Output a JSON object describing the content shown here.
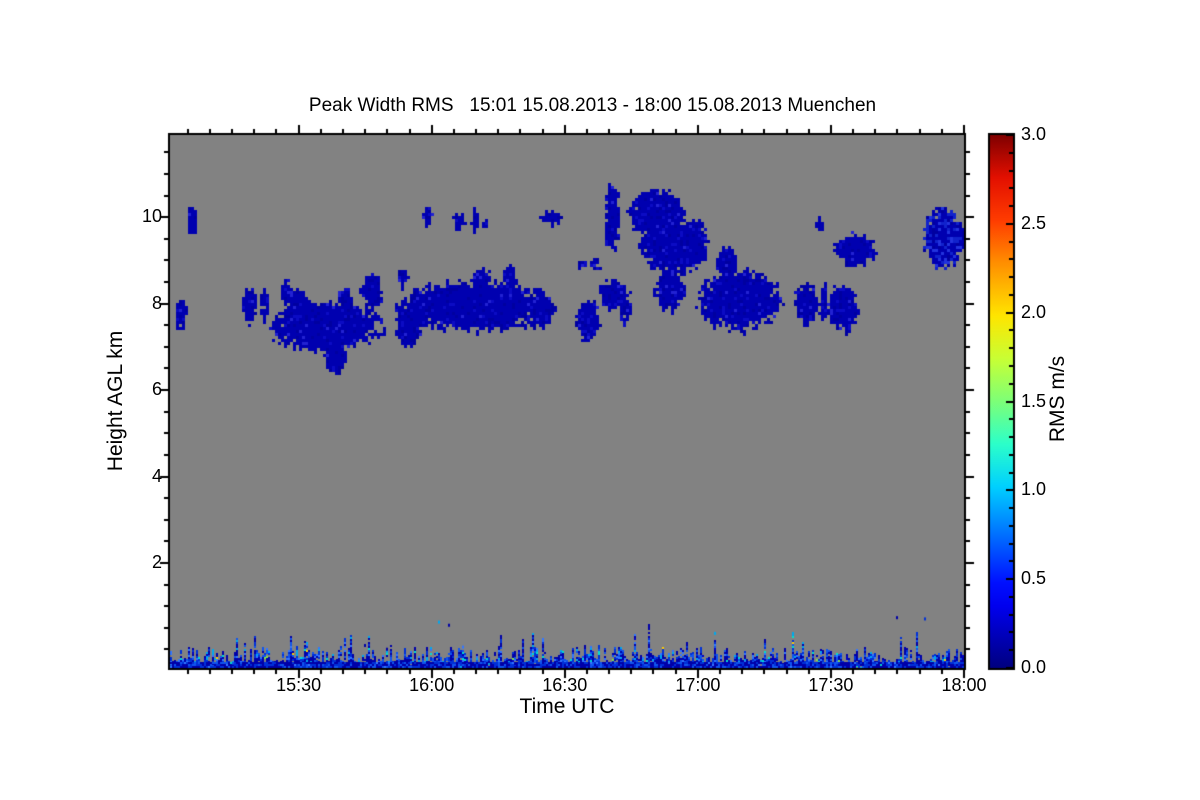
{
  "chart_data": {
    "type": "heatmap",
    "title": "Peak Width RMS   15:01 15.08.2013 - 18:00 15.08.2013 Muenchen",
    "xlabel": "Time UTC",
    "ylabel": "Height AGL km",
    "x_start_utc": "15:01",
    "x_end_utc": "18:00",
    "x_span_minutes": 179,
    "x_ticks": [
      {
        "t": 30,
        "label": "15:30"
      },
      {
        "t": 60,
        "label": "16:00"
      },
      {
        "t": 90,
        "label": "16:30"
      },
      {
        "t": 120,
        "label": "17:00"
      },
      {
        "t": 150,
        "label": "17:30"
      },
      {
        "t": 180,
        "label": "18:00"
      }
    ],
    "x_minor_tick_every_min": 5,
    "y_min_km": -0.43,
    "y_max_km": 11.9,
    "y_ticks": [
      {
        "h": 2,
        "label": "2"
      },
      {
        "h": 4,
        "label": "4"
      },
      {
        "h": 6,
        "label": "6"
      },
      {
        "h": 8,
        "label": "8"
      },
      {
        "h": 10,
        "label": "10"
      }
    ],
    "y_minor_tick_every_km": 0.5,
    "grid": false,
    "colors": {
      "plot_background_no_data": "#828282",
      "cloud_base": "#0000b0",
      "frame_and_text": "#000000",
      "page_background": "#ffffff"
    },
    "colorbar": {
      "label": "RMS m/s",
      "min": 0.0,
      "max": 3.0,
      "ticks": [
        {
          "v": 0.0,
          "label": "0.0"
        },
        {
          "v": 0.5,
          "label": "0.5"
        },
        {
          "v": 1.0,
          "label": "1.0"
        },
        {
          "v": 1.5,
          "label": "1.5"
        },
        {
          "v": 2.0,
          "label": "2.0"
        },
        {
          "v": 2.5,
          "label": "2.5"
        },
        {
          "v": 3.0,
          "label": "3.0"
        }
      ],
      "minor_tick_every": 0.1,
      "colormap": "jet",
      "colormap_stops": [
        [
          0.0,
          "#00007f"
        ],
        [
          0.115,
          "#0000ee"
        ],
        [
          0.16,
          "#0010ff"
        ],
        [
          0.34,
          "#00d0ff"
        ],
        [
          0.42,
          "#2cffca"
        ],
        [
          0.5,
          "#7dff78"
        ],
        [
          0.58,
          "#c8ff35"
        ],
        [
          0.66,
          "#ffe600"
        ],
        [
          0.76,
          "#ff8f00"
        ],
        [
          0.84,
          "#ff3c00"
        ],
        [
          0.92,
          "#e31000"
        ],
        [
          1.0,
          "#800000"
        ]
      ]
    },
    "cloud_regions_note": "low RMS (~0.1-0.3 m/s) cloud echoes; t = minutes after 15:00 UTC, h = km AGL, rt/rh = half extents",
    "clouds": [
      {
        "t": 3.7,
        "h": 7.76,
        "rt": 1.4,
        "rh": 0.36
      },
      {
        "t": 6.0,
        "h": 9.9,
        "rt": 1.4,
        "rh": 0.4
      },
      {
        "t": 19.0,
        "h": 7.95,
        "rt": 1.8,
        "rh": 0.45
      },
      {
        "t": 22.4,
        "h": 8.0,
        "rt": 1.0,
        "rh": 0.4,
        "d": 0.85
      },
      {
        "t": 27.3,
        "h": 8.25,
        "rt": 1.4,
        "rh": 0.3
      },
      {
        "t": 36.0,
        "h": 7.45,
        "rt": 12.8,
        "rh": 0.58
      },
      {
        "t": 38.2,
        "h": 6.85,
        "rt": 2.6,
        "rh": 0.5
      },
      {
        "t": 46.5,
        "h": 8.3,
        "rt": 2.6,
        "rh": 0.42
      },
      {
        "t": 40.5,
        "h": 8.1,
        "rt": 1.8,
        "rh": 0.28
      },
      {
        "t": 30.0,
        "h": 7.9,
        "rt": 3.0,
        "rh": 0.45
      },
      {
        "t": 53.5,
        "h": 8.6,
        "rt": 1.3,
        "rh": 0.22,
        "d": 0.9
      },
      {
        "t": 55.0,
        "h": 7.5,
        "rt": 3.0,
        "rh": 0.55
      },
      {
        "t": 69.0,
        "h": 7.95,
        "rt": 17.0,
        "rh": 0.6
      },
      {
        "t": 71.3,
        "h": 8.55,
        "rt": 2.2,
        "rh": 0.3
      },
      {
        "t": 77.5,
        "h": 8.6,
        "rt": 1.6,
        "rh": 0.3
      },
      {
        "t": 84.5,
        "h": 7.9,
        "rt": 3.2,
        "rh": 0.45
      },
      {
        "t": 95.2,
        "h": 7.6,
        "rt": 2.8,
        "rh": 0.5
      },
      {
        "t": 101.0,
        "h": 8.2,
        "rt": 3.6,
        "rh": 0.38
      },
      {
        "t": 100.7,
        "h": 10.0,
        "rt": 1.7,
        "rh": 0.8
      },
      {
        "t": 94.0,
        "h": 8.95,
        "rt": 0.9,
        "rh": 0.15,
        "d": 0.85
      },
      {
        "t": 97.0,
        "h": 8.92,
        "rt": 1.4,
        "rh": 0.16,
        "d": 0.85
      },
      {
        "t": 111.0,
        "h": 10.05,
        "rt": 6.6,
        "rh": 0.6
      },
      {
        "t": 114.5,
        "h": 9.3,
        "rt": 7.6,
        "rh": 0.65
      },
      {
        "t": 113.5,
        "h": 8.3,
        "rt": 3.5,
        "rh": 0.45
      },
      {
        "t": 119.5,
        "h": 9.4,
        "rt": 2.8,
        "rh": 0.55
      },
      {
        "t": 103.6,
        "h": 7.85,
        "rt": 1.4,
        "rh": 0.3,
        "d": 0.85
      },
      {
        "t": 129.5,
        "h": 8.1,
        "rt": 9.5,
        "rh": 0.72
      },
      {
        "t": 126.5,
        "h": 8.95,
        "rt": 2.2,
        "rh": 0.4
      },
      {
        "t": 144.4,
        "h": 8.0,
        "rt": 2.8,
        "rh": 0.48
      },
      {
        "t": 148.4,
        "h": 8.05,
        "rt": 1.1,
        "rh": 0.45
      },
      {
        "t": 152.7,
        "h": 7.9,
        "rt": 3.5,
        "rh": 0.55
      },
      {
        "t": 147.3,
        "h": 9.84,
        "rt": 0.9,
        "rh": 0.16,
        "d": 0.85
      },
      {
        "t": 155.4,
        "h": 9.24,
        "rt": 4.9,
        "rh": 0.38
      },
      {
        "t": 175.3,
        "h": 9.5,
        "rt": 4.6,
        "rh": 0.72,
        "b": 1
      },
      {
        "t": 59.1,
        "h": 10.02,
        "rt": 1.2,
        "rh": 0.26
      },
      {
        "t": 66.2,
        "h": 9.9,
        "rt": 1.5,
        "rh": 0.22,
        "d": 0.85
      },
      {
        "t": 69.8,
        "h": 9.93,
        "rt": 0.9,
        "rh": 0.28,
        "d": 0.85
      },
      {
        "t": 72.0,
        "h": 9.83,
        "rt": 0.5,
        "rh": 0.12,
        "d": 0.8
      },
      {
        "t": 87.2,
        "h": 10.01,
        "rt": 2.5,
        "rh": 0.16
      }
    ],
    "surface_layer": {
      "description": "speckled near-ground clutter band across full time span, RMS 0-1.5 m/s",
      "top_km_typical": 0.1,
      "palette": [
        "#0000a8",
        "#0030d8",
        "#1155ee",
        "#3377ff",
        "#00a8ee",
        "#00ddd0",
        "#0000c8",
        "#7fe34a",
        "#ffcc00"
      ]
    }
  }
}
